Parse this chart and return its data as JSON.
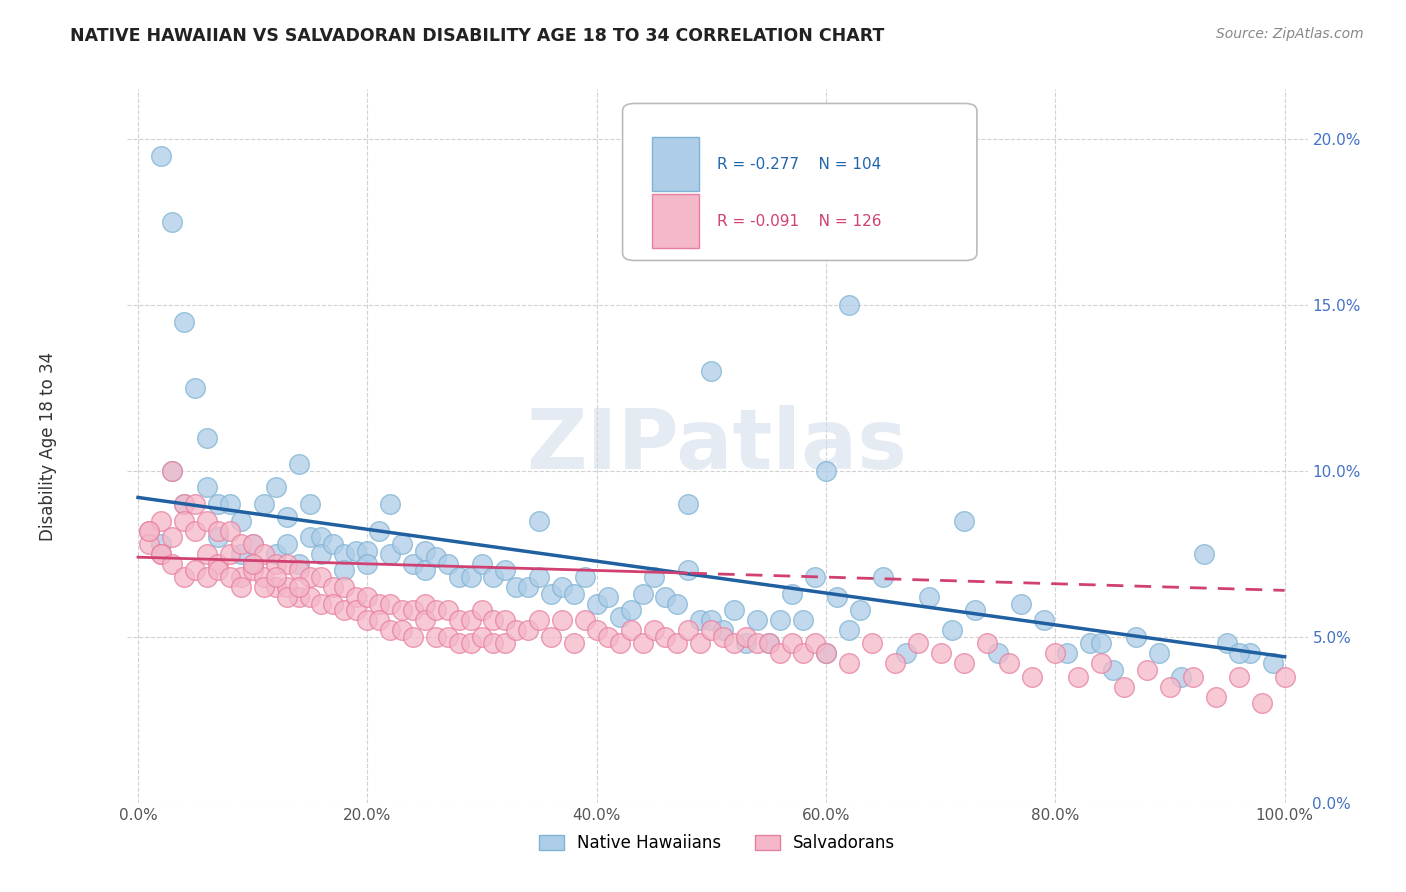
{
  "title": "NATIVE HAWAIIAN VS SALVADORAN DISABILITY AGE 18 TO 34 CORRELATION CHART",
  "source": "Source: ZipAtlas.com",
  "ylabel": "Disability Age 18 to 34",
  "xlim": [
    -0.01,
    1.02
  ],
  "ylim": [
    0.0,
    0.215
  ],
  "xticks": [
    0.0,
    0.2,
    0.4,
    0.6,
    0.8,
    1.0
  ],
  "xticklabels": [
    "0.0%",
    "20.0%",
    "40.0%",
    "60.0%",
    "80.0%",
    "100.0%"
  ],
  "yticks": [
    0.0,
    0.05,
    0.1,
    0.15,
    0.2
  ],
  "yticklabels": [
    "0.0%",
    "5.0%",
    "10.0%",
    "15.0%",
    "20.0%"
  ],
  "blue_color": "#aecde8",
  "blue_edge_color": "#7fb3d3",
  "pink_color": "#f4b8c8",
  "pink_edge_color": "#e87fa0",
  "blue_line_color": "#2060a0",
  "pink_line_color": "#d04070",
  "label1": "Native Hawaiians",
  "label2": "Salvadorans",
  "watermark": "ZIPatlas",
  "blue_R": -0.277,
  "blue_N": 104,
  "pink_R": -0.091,
  "pink_N": 126,
  "blue_intercept": 0.092,
  "blue_slope": -0.048,
  "pink_intercept": 0.074,
  "pink_slope": -0.01,
  "blue_x": [
    0.02,
    0.03,
    0.04,
    0.05,
    0.06,
    0.06,
    0.07,
    0.07,
    0.08,
    0.09,
    0.09,
    0.1,
    0.1,
    0.11,
    0.12,
    0.12,
    0.13,
    0.13,
    0.14,
    0.15,
    0.15,
    0.16,
    0.16,
    0.17,
    0.18,
    0.18,
    0.19,
    0.2,
    0.2,
    0.21,
    0.22,
    0.23,
    0.24,
    0.25,
    0.25,
    0.26,
    0.27,
    0.28,
    0.29,
    0.3,
    0.31,
    0.32,
    0.33,
    0.34,
    0.35,
    0.36,
    0.37,
    0.38,
    0.39,
    0.4,
    0.41,
    0.42,
    0.43,
    0.44,
    0.45,
    0.46,
    0.47,
    0.48,
    0.49,
    0.5,
    0.51,
    0.52,
    0.53,
    0.54,
    0.55,
    0.56,
    0.57,
    0.58,
    0.59,
    0.6,
    0.61,
    0.62,
    0.63,
    0.65,
    0.67,
    0.69,
    0.71,
    0.73,
    0.75,
    0.77,
    0.79,
    0.81,
    0.83,
    0.85,
    0.87,
    0.89,
    0.91,
    0.93,
    0.95,
    0.97,
    0.99,
    0.02,
    0.03,
    0.04,
    0.14,
    0.22,
    0.35,
    0.48,
    0.6,
    0.72,
    0.84,
    0.96,
    0.5,
    0.62
  ],
  "blue_y": [
    0.195,
    0.175,
    0.145,
    0.125,
    0.11,
    0.095,
    0.09,
    0.08,
    0.09,
    0.085,
    0.075,
    0.078,
    0.072,
    0.09,
    0.095,
    0.075,
    0.086,
    0.078,
    0.072,
    0.09,
    0.08,
    0.08,
    0.075,
    0.078,
    0.075,
    0.07,
    0.076,
    0.076,
    0.072,
    0.082,
    0.075,
    0.078,
    0.072,
    0.076,
    0.07,
    0.074,
    0.072,
    0.068,
    0.068,
    0.072,
    0.068,
    0.07,
    0.065,
    0.065,
    0.068,
    0.063,
    0.065,
    0.063,
    0.068,
    0.06,
    0.062,
    0.056,
    0.058,
    0.063,
    0.068,
    0.062,
    0.06,
    0.07,
    0.055,
    0.055,
    0.052,
    0.058,
    0.048,
    0.055,
    0.048,
    0.055,
    0.063,
    0.055,
    0.068,
    0.045,
    0.062,
    0.052,
    0.058,
    0.068,
    0.045,
    0.062,
    0.052,
    0.058,
    0.045,
    0.06,
    0.055,
    0.045,
    0.048,
    0.04,
    0.05,
    0.045,
    0.038,
    0.075,
    0.048,
    0.045,
    0.042,
    0.078,
    0.1,
    0.09,
    0.102,
    0.09,
    0.085,
    0.09,
    0.1,
    0.085,
    0.048,
    0.045,
    0.13,
    0.15
  ],
  "pink_x": [
    0.01,
    0.01,
    0.02,
    0.02,
    0.03,
    0.03,
    0.04,
    0.04,
    0.05,
    0.05,
    0.06,
    0.06,
    0.07,
    0.07,
    0.08,
    0.08,
    0.09,
    0.09,
    0.1,
    0.1,
    0.11,
    0.11,
    0.12,
    0.12,
    0.13,
    0.13,
    0.14,
    0.14,
    0.15,
    0.15,
    0.16,
    0.16,
    0.17,
    0.17,
    0.18,
    0.18,
    0.19,
    0.19,
    0.2,
    0.2,
    0.21,
    0.21,
    0.22,
    0.22,
    0.23,
    0.23,
    0.24,
    0.24,
    0.25,
    0.25,
    0.26,
    0.26,
    0.27,
    0.27,
    0.28,
    0.28,
    0.29,
    0.29,
    0.3,
    0.3,
    0.31,
    0.31,
    0.32,
    0.32,
    0.33,
    0.34,
    0.35,
    0.36,
    0.37,
    0.38,
    0.39,
    0.4,
    0.41,
    0.42,
    0.43,
    0.44,
    0.45,
    0.46,
    0.47,
    0.48,
    0.49,
    0.5,
    0.51,
    0.52,
    0.53,
    0.54,
    0.55,
    0.56,
    0.57,
    0.58,
    0.59,
    0.6,
    0.62,
    0.64,
    0.66,
    0.68,
    0.7,
    0.72,
    0.74,
    0.76,
    0.78,
    0.8,
    0.82,
    0.84,
    0.86,
    0.88,
    0.9,
    0.92,
    0.94,
    0.96,
    0.98,
    1.0,
    0.01,
    0.02,
    0.03,
    0.04,
    0.05,
    0.06,
    0.07,
    0.08,
    0.09,
    0.1,
    0.11,
    0.12,
    0.13,
    0.14
  ],
  "pink_y": [
    0.082,
    0.078,
    0.085,
    0.075,
    0.1,
    0.08,
    0.09,
    0.085,
    0.09,
    0.082,
    0.085,
    0.075,
    0.082,
    0.072,
    0.082,
    0.075,
    0.078,
    0.068,
    0.078,
    0.07,
    0.075,
    0.068,
    0.072,
    0.065,
    0.072,
    0.065,
    0.07,
    0.062,
    0.068,
    0.062,
    0.068,
    0.06,
    0.065,
    0.06,
    0.065,
    0.058,
    0.062,
    0.058,
    0.062,
    0.055,
    0.06,
    0.055,
    0.06,
    0.052,
    0.058,
    0.052,
    0.058,
    0.05,
    0.06,
    0.055,
    0.058,
    0.05,
    0.058,
    0.05,
    0.055,
    0.048,
    0.055,
    0.048,
    0.058,
    0.05,
    0.055,
    0.048,
    0.055,
    0.048,
    0.052,
    0.052,
    0.055,
    0.05,
    0.055,
    0.048,
    0.055,
    0.052,
    0.05,
    0.048,
    0.052,
    0.048,
    0.052,
    0.05,
    0.048,
    0.052,
    0.048,
    0.052,
    0.05,
    0.048,
    0.05,
    0.048,
    0.048,
    0.045,
    0.048,
    0.045,
    0.048,
    0.045,
    0.042,
    0.048,
    0.042,
    0.048,
    0.045,
    0.042,
    0.048,
    0.042,
    0.038,
    0.045,
    0.038,
    0.042,
    0.035,
    0.04,
    0.035,
    0.038,
    0.032,
    0.038,
    0.03,
    0.038,
    0.082,
    0.075,
    0.072,
    0.068,
    0.07,
    0.068,
    0.07,
    0.068,
    0.065,
    0.072,
    0.065,
    0.068,
    0.062,
    0.065
  ]
}
